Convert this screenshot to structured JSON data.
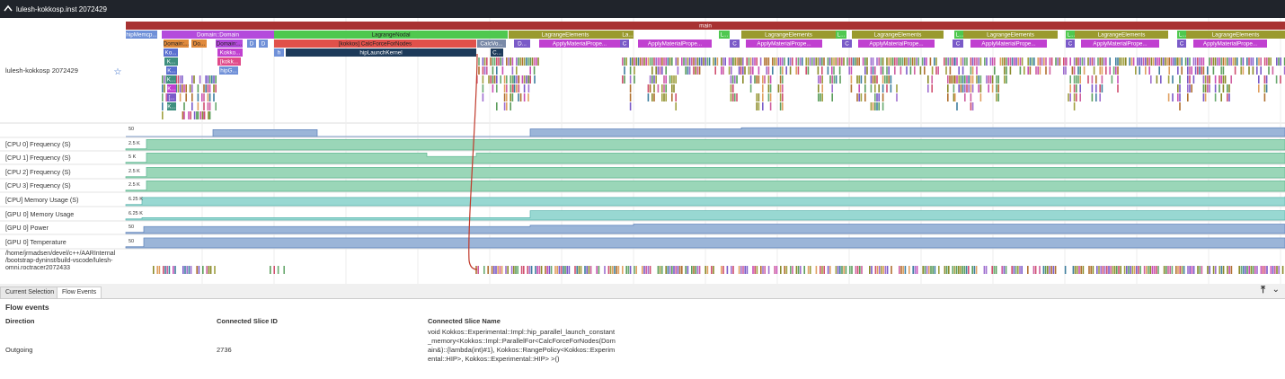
{
  "header": {
    "title": "lulesh-kokkosp.inst 2072429"
  },
  "process_track": {
    "label": "lulesh-kokkosp 2072429",
    "slices": [
      "main",
      "hipMemcp...",
      "Domain::Domain",
      "LagrangeNodal",
      "LagrangeElements",
      "La...",
      "L...",
      "LagrangeElements",
      "L...",
      "LagrangeElements",
      "L...",
      "LagrangeElements",
      "L...",
      "LagrangeElements",
      "L...",
      "LagrangeElements",
      "Domain:...",
      "Do...",
      "Domain:...",
      "D",
      "D",
      "[kokkos] CalcForceForNodes",
      "CalcVo...",
      "D...",
      "ApplyMaterialPrope...",
      "C",
      "ApplyMaterialPrope...",
      "C",
      "ApplyMaterialPrope...",
      "C",
      "ApplyMaterialPrope...",
      "C",
      "ApplyMaterialPrope...",
      "C",
      "ApplyMaterialPrope...",
      "C",
      "ApplyMaterialPrope...",
      "Ko...",
      "Kokko...",
      "h",
      "hipLaunchKernel",
      "C...",
      "K...",
      "[kokk...",
      "K...",
      "hipG...",
      "K...",
      "K...",
      "[...",
      "K..."
    ]
  },
  "counter_tracks": [
    {
      "name": null,
      "scale": "50"
    },
    {
      "name": "[CPU 0] Frequency (S)",
      "scale": "2.5 K"
    },
    {
      "name": "[CPU 1] Frequency (S)",
      "scale": "5 K"
    },
    {
      "name": "[CPU 2] Frequency (S)",
      "scale": "2.5 K"
    },
    {
      "name": "[CPU 3] Frequency (S)",
      "scale": "2.5 K"
    },
    {
      "name": "[CPU] Memory Usage (S)",
      "scale": "6.25 K"
    },
    {
      "name": "[GPU 0] Memory Usage",
      "scale": "6.25 K"
    },
    {
      "name": "[GPU 0] Power",
      "scale": "50"
    },
    {
      "name": "[GPU 0] Temperature",
      "scale": "50"
    }
  ],
  "roctracer_track": {
    "label": "/home/jrmadsen/devel/c++/AARInternal /bootstrap-dyninst/build-vscode/lulesh- omni.roctracer 2072433"
  },
  "tabs": [
    "Current Selection",
    "Flow Events"
  ],
  "flow_panel": {
    "title": "Flow events",
    "columns": [
      "Direction",
      "Connected Slice ID",
      "Connected Slice Name"
    ],
    "rows": [
      [
        "Outgoing",
        "2736",
        "void Kokkos::Experimental::Impl::hip_parallel_launch_constant_memory<Kokkos::Impl::ParallelFor<CalcForceForNodes(Domain&)::{lambda(int)#1}, Kokkos::RangePolicy<Kokkos::Experimental::HIP>, Kokkos::Experimental::HIP> >()"
      ]
    ]
  }
}
